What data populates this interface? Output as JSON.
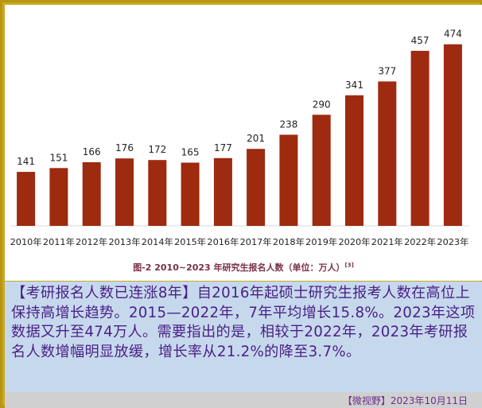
{
  "chart_data": {
    "type": "bar",
    "categories": [
      "2010年",
      "2011年",
      "2012年",
      "2013年",
      "2014年",
      "2015年",
      "2016年",
      "2017年",
      "2018年",
      "2019年",
      "2020年",
      "2021年",
      "2022年",
      "2023年"
    ],
    "values": [
      141,
      151,
      166,
      176,
      172,
      165,
      177,
      201,
      238,
      290,
      341,
      377,
      457,
      474
    ],
    "title": "图-2 2010~2023 年研究生报名人数（单位：万人）",
    "title_ref": "[3]",
    "xlabel": "",
    "ylabel": "",
    "ylim": [
      0,
      490
    ],
    "grid": false,
    "bar_color": "#9e2a0f",
    "data_labels": true
  },
  "article": {
    "text": "【考研报名人数已连涨8年】自2016年起硕士研究生报考人数在高位上保持高增长趋势。2015—2022年，7年平均增长15.8%。2023年这项数据又升至474万人。需要指出的是，相较于2022年，2023年考研报名人数增幅明显放缓，增长率从21.2%的降至3.7%。"
  },
  "footer": {
    "source": "【微视野】2023年10月11日"
  },
  "colors": {
    "frame": "#c9a825",
    "text_panel": "#c6d9ec",
    "text": "#4a1f88",
    "caption": "#7a2f4a"
  }
}
